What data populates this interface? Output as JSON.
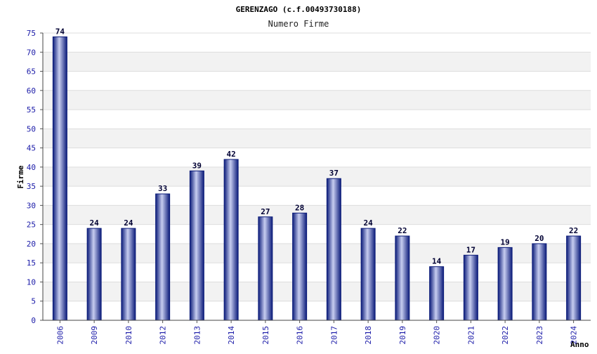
{
  "chart_data": {
    "type": "bar",
    "title": "GERENZAGO (c.f.00493730188)",
    "subtitle": "Numero Firme",
    "xlabel": "Anno",
    "ylabel": "Firme",
    "categories": [
      "2006",
      "2009",
      "2010",
      "2012",
      "2013",
      "2014",
      "2015",
      "2016",
      "2017",
      "2018",
      "2019",
      "2020",
      "2021",
      "2022",
      "2023",
      "2024"
    ],
    "values": [
      74,
      24,
      24,
      33,
      39,
      42,
      27,
      28,
      37,
      24,
      22,
      14,
      17,
      19,
      20,
      22
    ],
    "ylim": [
      0,
      75
    ],
    "yticks": [
      0,
      5,
      10,
      15,
      20,
      25,
      30,
      35,
      40,
      45,
      50,
      55,
      60,
      65,
      70,
      75
    ],
    "grid": true,
    "data_labels": true,
    "colors": {
      "bar_dark": "#0c1c7a",
      "bar_light": "#c7cdf0",
      "band": "#f2f2f2",
      "tick_text": "#1a1aa8"
    }
  }
}
